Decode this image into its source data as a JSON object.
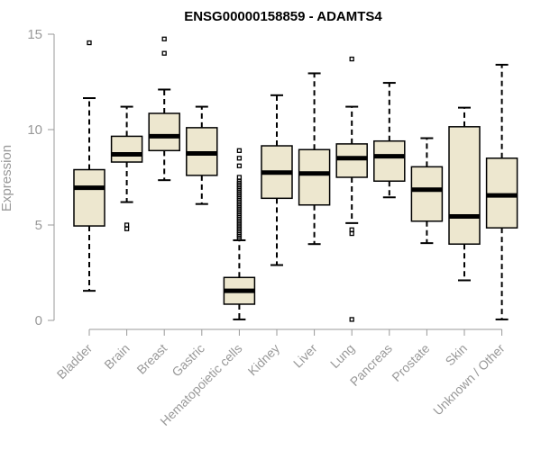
{
  "chart_data": {
    "type": "boxplot",
    "title": "ENSG00000158859 - ADAMTS4",
    "xlabel": "",
    "ylabel": "Expression",
    "ylim": [
      0,
      15
    ],
    "yticks": [
      0,
      5,
      10,
      15
    ],
    "grid": false,
    "box_color": "#ede7cf",
    "categories": [
      "Bladder",
      "Brain",
      "Breast",
      "Gastric",
      "Hematopoietic cells",
      "Kidney",
      "Liver",
      "Lung",
      "Pancreas",
      "Prostate",
      "Skin",
      "Unknown / Other"
    ],
    "boxes": [
      {
        "min": 1.55,
        "q1": 4.95,
        "median": 6.95,
        "q3": 7.9,
        "max": 11.65,
        "outliers": [
          14.55
        ]
      },
      {
        "min": 6.2,
        "q1": 8.3,
        "median": 8.7,
        "q3": 9.65,
        "max": 11.2,
        "outliers": [
          5.0,
          4.8
        ]
      },
      {
        "min": 7.35,
        "q1": 8.9,
        "median": 9.65,
        "q3": 10.85,
        "max": 12.1,
        "outliers": [
          14.0,
          14.75
        ]
      },
      {
        "min": 6.1,
        "q1": 7.6,
        "median": 8.75,
        "q3": 10.1,
        "max": 11.2,
        "outliers": []
      },
      {
        "min": 0.05,
        "q1": 0.85,
        "median": 1.55,
        "q3": 2.25,
        "max": 4.2,
        "outliers": [
          4.3,
          4.4,
          4.5,
          4.6,
          4.7,
          4.8,
          4.9,
          5.0,
          5.1,
          5.2,
          5.3,
          5.4,
          5.5,
          5.6,
          5.7,
          5.8,
          5.9,
          6.0,
          6.1,
          6.2,
          6.3,
          6.4,
          6.5,
          6.6,
          6.7,
          6.8,
          6.9,
          7.0,
          7.1,
          7.2,
          7.3,
          7.5,
          8.1,
          8.5,
          8.9
        ]
      },
      {
        "min": 2.9,
        "q1": 6.4,
        "median": 7.75,
        "q3": 9.15,
        "max": 11.8,
        "outliers": []
      },
      {
        "min": 4.0,
        "q1": 6.05,
        "median": 7.7,
        "q3": 8.95,
        "max": 12.95,
        "outliers": []
      },
      {
        "min": 5.1,
        "q1": 7.5,
        "median": 8.5,
        "q3": 9.25,
        "max": 11.2,
        "outliers": [
          4.55,
          4.75,
          13.7,
          0.05
        ]
      },
      {
        "min": 6.45,
        "q1": 7.3,
        "median": 8.6,
        "q3": 9.4,
        "max": 12.45,
        "outliers": []
      },
      {
        "min": 4.05,
        "q1": 5.2,
        "median": 6.85,
        "q3": 8.05,
        "max": 9.55,
        "outliers": []
      },
      {
        "min": 2.1,
        "q1": 4.0,
        "median": 5.45,
        "q3": 10.15,
        "max": 11.15,
        "outliers": []
      },
      {
        "min": 0.05,
        "q1": 4.85,
        "median": 6.55,
        "q3": 8.5,
        "max": 13.4,
        "outliers": []
      }
    ]
  }
}
